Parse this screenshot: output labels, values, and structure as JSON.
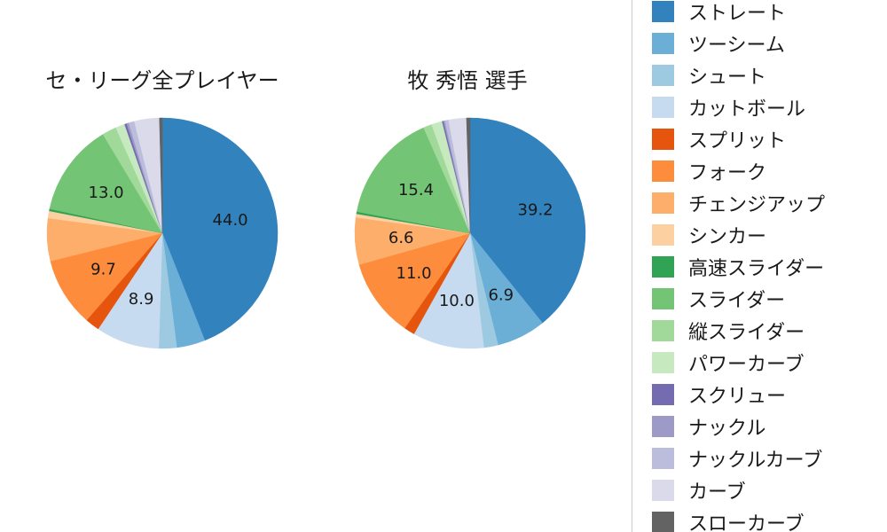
{
  "page": {
    "background": "#ffffff"
  },
  "chart_data": [
    {
      "type": "pie",
      "title": "セ・リーグ全プレイヤー",
      "categories": [
        "ストレート",
        "ツーシーム",
        "シュート",
        "カットボール",
        "スプリット",
        "フォーク",
        "チェンジアップ",
        "シンカー",
        "高速スライダー",
        "スライダー",
        "縦スライダー",
        "パワーカーブ",
        "スクリュー",
        "ナックル",
        "ナックルカーブ",
        "カーブ",
        "スローカーブ"
      ],
      "values": [
        44.0,
        4.0,
        2.5,
        8.9,
        2.0,
        9.7,
        6.0,
        1.0,
        0.3,
        13.0,
        2.0,
        1.3,
        0.3,
        0.3,
        0.8,
        3.5,
        0.4
      ],
      "colors": [
        "#3182bd",
        "#6baed6",
        "#9ecae1",
        "#c6dbef",
        "#e6550d",
        "#fd8d3c",
        "#fdae6b",
        "#fdd0a2",
        "#31a354",
        "#74c476",
        "#a1d99b",
        "#c7e9c0",
        "#756bb1",
        "#9e9ac8",
        "#bcbddc",
        "#dadaeb",
        "#636363"
      ],
      "visible_labels": [
        44.0,
        8.9,
        9.7,
        13.0
      ],
      "label_threshold": 6.5,
      "start_angle_deg": 90,
      "direction": "clockwise",
      "legend_position": "right"
    },
    {
      "type": "pie",
      "title": "牧 秀悟 選手",
      "categories": [
        "ストレート",
        "ツーシーム",
        "シュート",
        "カットボール",
        "スプリット",
        "フォーク",
        "チェンジアップ",
        "シンカー",
        "高速スライダー",
        "スライダー",
        "縦スライダー",
        "パワーカーブ",
        "スクリュー",
        "ナックル",
        "ナックルカーブ",
        "カーブ",
        "スローカーブ"
      ],
      "values": [
        39.2,
        6.9,
        2.0,
        10.0,
        1.5,
        11.0,
        6.6,
        0.5,
        0.3,
        15.4,
        1.2,
        1.5,
        0.2,
        0.2,
        0.5,
        2.5,
        0.5
      ],
      "colors": [
        "#3182bd",
        "#6baed6",
        "#9ecae1",
        "#c6dbef",
        "#e6550d",
        "#fd8d3c",
        "#fdae6b",
        "#fdd0a2",
        "#31a354",
        "#74c476",
        "#a1d99b",
        "#c7e9c0",
        "#756bb1",
        "#9e9ac8",
        "#bcbddc",
        "#dadaeb",
        "#636363"
      ],
      "visible_labels": [
        39.2,
        6.9,
        10.0,
        11.0,
        6.6,
        15.4
      ],
      "label_threshold": 6.5,
      "start_angle_deg": 90,
      "direction": "clockwise",
      "legend_position": "right"
    }
  ],
  "legend": {
    "items": [
      "ストレート",
      "ツーシーム",
      "シュート",
      "カットボール",
      "スプリット",
      "フォーク",
      "チェンジアップ",
      "シンカー",
      "高速スライダー",
      "スライダー",
      "縦スライダー",
      "パワーカーブ",
      "スクリュー",
      "ナックル",
      "ナックルカーブ",
      "カーブ",
      "スローカーブ"
    ]
  }
}
